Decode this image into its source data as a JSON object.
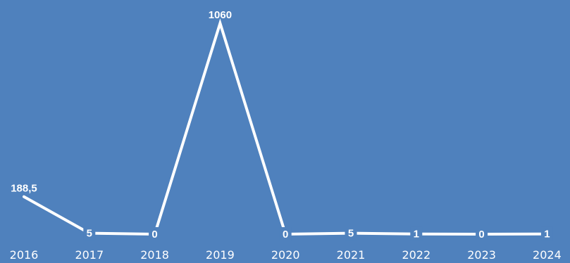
{
  "chart_data": {
    "type": "line",
    "title": "",
    "xlabel": "",
    "ylabel": "",
    "categories": [
      "2016",
      "2017",
      "2018",
      "2019",
      "2020",
      "2021",
      "2022",
      "2023",
      "2024"
    ],
    "series": [
      {
        "values": [
          188.5,
          5,
          0,
          1060,
          0,
          5,
          1,
          0,
          1
        ],
        "labels": [
          "188,5",
          "5",
          "0",
          "1060",
          "0",
          "5",
          "1",
          "0",
          "1"
        ]
      }
    ],
    "ylim": [
      0,
      1060
    ],
    "grid": false,
    "legend": "none",
    "colors": {
      "background": "#4f81bd",
      "line": "#ffffff",
      "text": "#ffffff"
    }
  }
}
